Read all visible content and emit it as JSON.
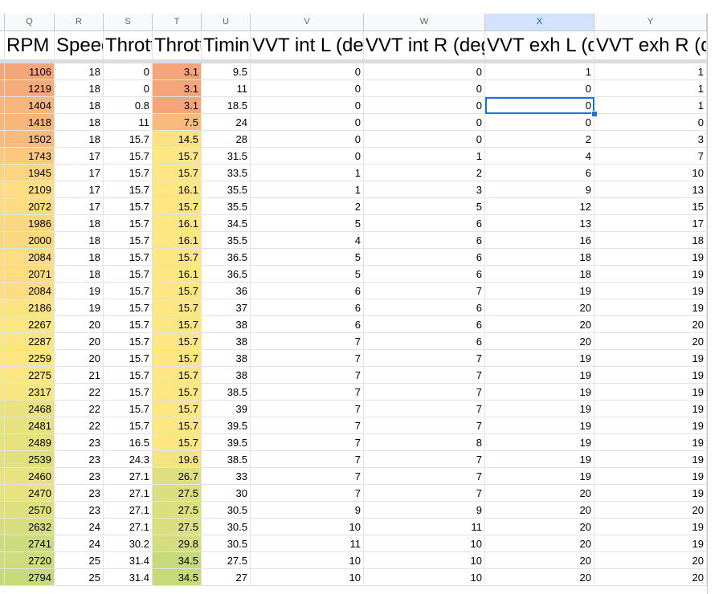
{
  "column_letters": [
    "Q",
    "R",
    "S",
    "T",
    "U",
    "V",
    "W",
    "X",
    "Y"
  ],
  "headers": [
    "RPM",
    "Speed",
    "Throttle",
    "Throttle",
    "Timing",
    "VVT int L (deg)",
    "VVT int R (deg)",
    "VVT exh L (deg)",
    "VVT exh R (deg)"
  ],
  "rows": [
    [
      1106,
      18,
      0,
      3.1,
      9.5,
      0,
      0,
      1,
      1
    ],
    [
      1219,
      18,
      0,
      3.1,
      11,
      0,
      0,
      0,
      1
    ],
    [
      1404,
      18,
      0.8,
      3.1,
      18.5,
      0,
      0,
      0,
      1
    ],
    [
      1418,
      18,
      11,
      7.5,
      24,
      0,
      0,
      0,
      0
    ],
    [
      1502,
      18,
      15.7,
      14.5,
      28,
      0,
      0,
      2,
      3
    ],
    [
      1743,
      17,
      15.7,
      15.7,
      31.5,
      0,
      1,
      4,
      7
    ],
    [
      1945,
      17,
      15.7,
      15.7,
      33.5,
      1,
      2,
      6,
      10
    ],
    [
      2109,
      17,
      15.7,
      16.1,
      35.5,
      1,
      3,
      9,
      13
    ],
    [
      2072,
      17,
      15.7,
      15.7,
      35.5,
      2,
      5,
      12,
      15
    ],
    [
      1986,
      18,
      15.7,
      16.1,
      34.5,
      5,
      6,
      13,
      17
    ],
    [
      2000,
      18,
      15.7,
      16.1,
      35.5,
      4,
      6,
      16,
      18
    ],
    [
      2084,
      18,
      15.7,
      15.7,
      36.5,
      5,
      6,
      18,
      19
    ],
    [
      2071,
      18,
      15.7,
      16.1,
      36.5,
      5,
      6,
      18,
      19
    ],
    [
      2084,
      19,
      15.7,
      15.7,
      36,
      6,
      7,
      19,
      19
    ],
    [
      2186,
      19,
      15.7,
      15.7,
      37,
      6,
      6,
      20,
      19
    ],
    [
      2267,
      20,
      15.7,
      15.7,
      38,
      6,
      6,
      20,
      20
    ],
    [
      2287,
      20,
      15.7,
      15.7,
      38,
      7,
      6,
      20,
      20
    ],
    [
      2259,
      20,
      15.7,
      15.7,
      38,
      7,
      7,
      19,
      19
    ],
    [
      2275,
      21,
      15.7,
      15.7,
      38,
      7,
      7,
      19,
      19
    ],
    [
      2317,
      22,
      15.7,
      15.7,
      38.5,
      7,
      7,
      19,
      19
    ],
    [
      2468,
      22,
      15.7,
      15.7,
      39,
      7,
      7,
      19,
      19
    ],
    [
      2481,
      22,
      15.7,
      15.7,
      39.5,
      7,
      7,
      19,
      19
    ],
    [
      2489,
      23,
      16.5,
      15.7,
      39.5,
      7,
      8,
      19,
      19
    ],
    [
      2539,
      23,
      24.3,
      19.6,
      38.5,
      7,
      7,
      19,
      19
    ],
    [
      2460,
      23,
      27.1,
      26.7,
      33,
      7,
      7,
      19,
      19
    ],
    [
      2470,
      23,
      27.1,
      27.5,
      30,
      7,
      7,
      20,
      19
    ],
    [
      2570,
      23,
      27.1,
      27.5,
      30.5,
      9,
      9,
      20,
      20
    ],
    [
      2632,
      24,
      27.1,
      27.5,
      30.5,
      10,
      11,
      20,
      19
    ],
    [
      2741,
      24,
      30.2,
      29.8,
      30.5,
      11,
      10,
      20,
      19
    ],
    [
      2720,
      25,
      31.4,
      34.5,
      27.5,
      10,
      10,
      20,
      20
    ],
    [
      2794,
      25,
      31.4,
      34.5,
      27,
      10,
      10,
      20,
      20
    ]
  ]
}
